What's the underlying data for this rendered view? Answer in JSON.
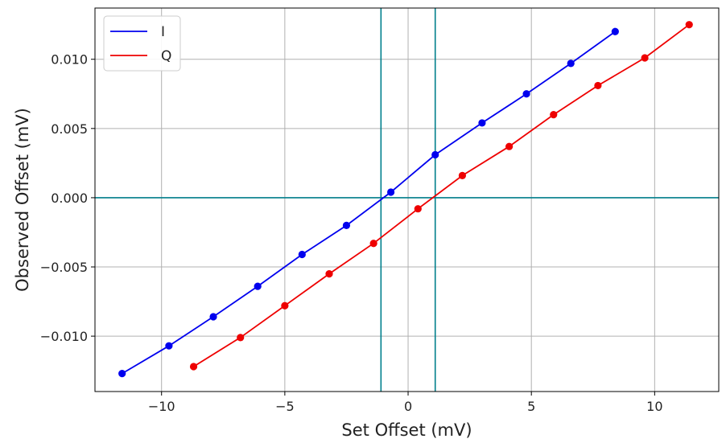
{
  "chart_data": {
    "type": "line",
    "xlabel": "Set Offset (mV)",
    "ylabel": "Observed Offset (mV)",
    "xlim": [
      -12.7,
      12.6
    ],
    "ylim": [
      -0.014,
      0.0137
    ],
    "xticks": [
      -10,
      -5,
      0,
      5,
      10
    ],
    "xtick_labels": [
      "−10",
      "−5",
      "0",
      "5",
      "10"
    ],
    "yticks": [
      -0.01,
      -0.005,
      0.0,
      0.005,
      0.01
    ],
    "ytick_labels": [
      "−0.010",
      "−0.005",
      "0.000",
      "0.005",
      "0.010"
    ],
    "grid": true,
    "legend_position": "top-left",
    "reference_lines": {
      "vertical": [
        -1.1,
        1.1
      ],
      "horizontal": [
        0.0
      ],
      "color": "#007f8c"
    },
    "series": [
      {
        "name": "I",
        "color": "#0000ee",
        "x": [
          -11.6,
          -9.7,
          -7.9,
          -6.1,
          -4.3,
          -2.5,
          -0.7,
          1.1,
          3.0,
          4.8,
          6.6,
          8.4
        ],
        "y": [
          -0.0127,
          -0.0107,
          -0.0086,
          -0.0064,
          -0.0041,
          -0.002,
          0.0004,
          0.0031,
          0.0054,
          0.0075,
          0.0097,
          0.012
        ]
      },
      {
        "name": "Q",
        "color": "#ee0000",
        "x": [
          -8.7,
          -6.8,
          -5.0,
          -3.2,
          -1.4,
          0.4,
          2.2,
          4.1,
          5.9,
          7.7,
          9.6,
          11.4
        ],
        "y": [
          -0.0122,
          -0.0101,
          -0.0078,
          -0.0055,
          -0.0033,
          -0.0008,
          0.0016,
          0.0037,
          0.006,
          0.0081,
          0.0101,
          0.0125
        ]
      }
    ]
  }
}
